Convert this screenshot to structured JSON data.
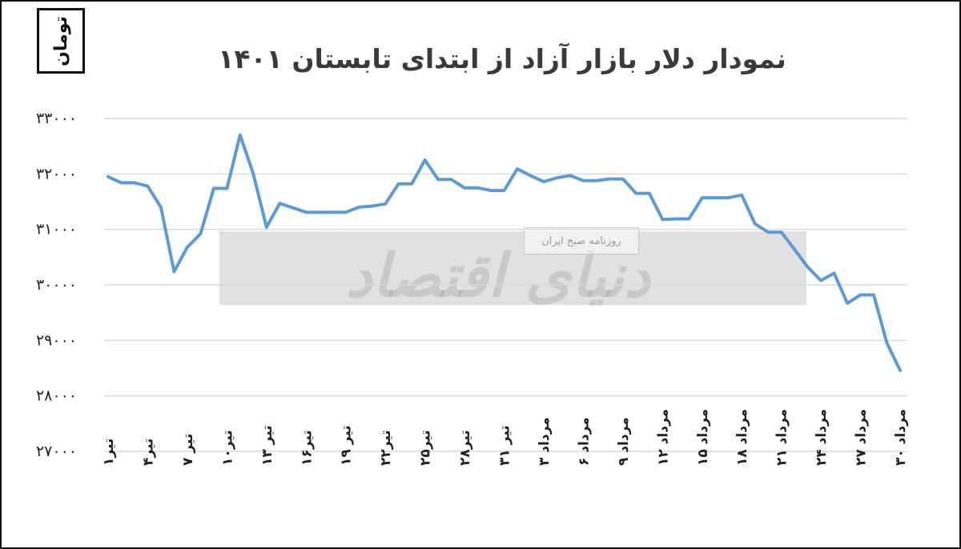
{
  "chart_data": {
    "type": "line",
    "title": "نمودار دلار بازار آزاد از ابتدای تابستان ۱۴۰۱",
    "unit_label": "تومان",
    "ylim": [
      27000,
      33000
    ],
    "yticks": [
      27000,
      28000,
      29000,
      30000,
      31000,
      32000,
      33000
    ],
    "ytick_labels": [
      "۲۷۰۰۰",
      "۲۸۰۰۰",
      "۲۹۰۰۰",
      "۳۰۰۰۰",
      "۳۱۰۰۰",
      "۳۲۰۰۰",
      "۳۳۰۰۰"
    ],
    "xtick_labels": [
      "تیر۱",
      "تیر۴",
      "تیر ۷",
      "تیر۱۰",
      "تیر ۱۳",
      "تیر۱۶",
      "تیر ۱۹",
      "تیر۲۲",
      "تیر۲۵",
      "تیر۲۸",
      "تیر ۳۱",
      "مرداد ۳",
      "مرداد ۶",
      "مرداد ۹",
      "مرداد ۱۲",
      "مرداد ۱۵",
      "مرداد ۱۸",
      "مرداد ۲۱",
      "مرداد ۲۴",
      "مرداد ۲۷",
      "مرداد ۳۰"
    ],
    "grid": true,
    "series": [
      {
        "color": "#5b9bd5",
        "values": [
          31950,
          31840,
          31840,
          31780,
          31400,
          30240,
          30680,
          30920,
          31740,
          31740,
          32700,
          32000,
          31040,
          31470,
          31390,
          31310,
          31310,
          31310,
          31310,
          31400,
          31420,
          31460,
          31820,
          31820,
          32250,
          31900,
          31900,
          31750,
          31750,
          31700,
          31700,
          32090,
          31970,
          31860,
          31930,
          31970,
          31880,
          31880,
          31910,
          31910,
          31650,
          31650,
          31180,
          31190,
          31190,
          31570,
          31570,
          31570,
          31620,
          31100,
          30950,
          30950,
          30640,
          30320,
          30080,
          30210,
          29670,
          29820,
          29820,
          28950,
          28460
        ]
      }
    ]
  },
  "watermark": {
    "text": "دنیای اقتصاد",
    "tag": "روزنامه صبح ایران"
  }
}
